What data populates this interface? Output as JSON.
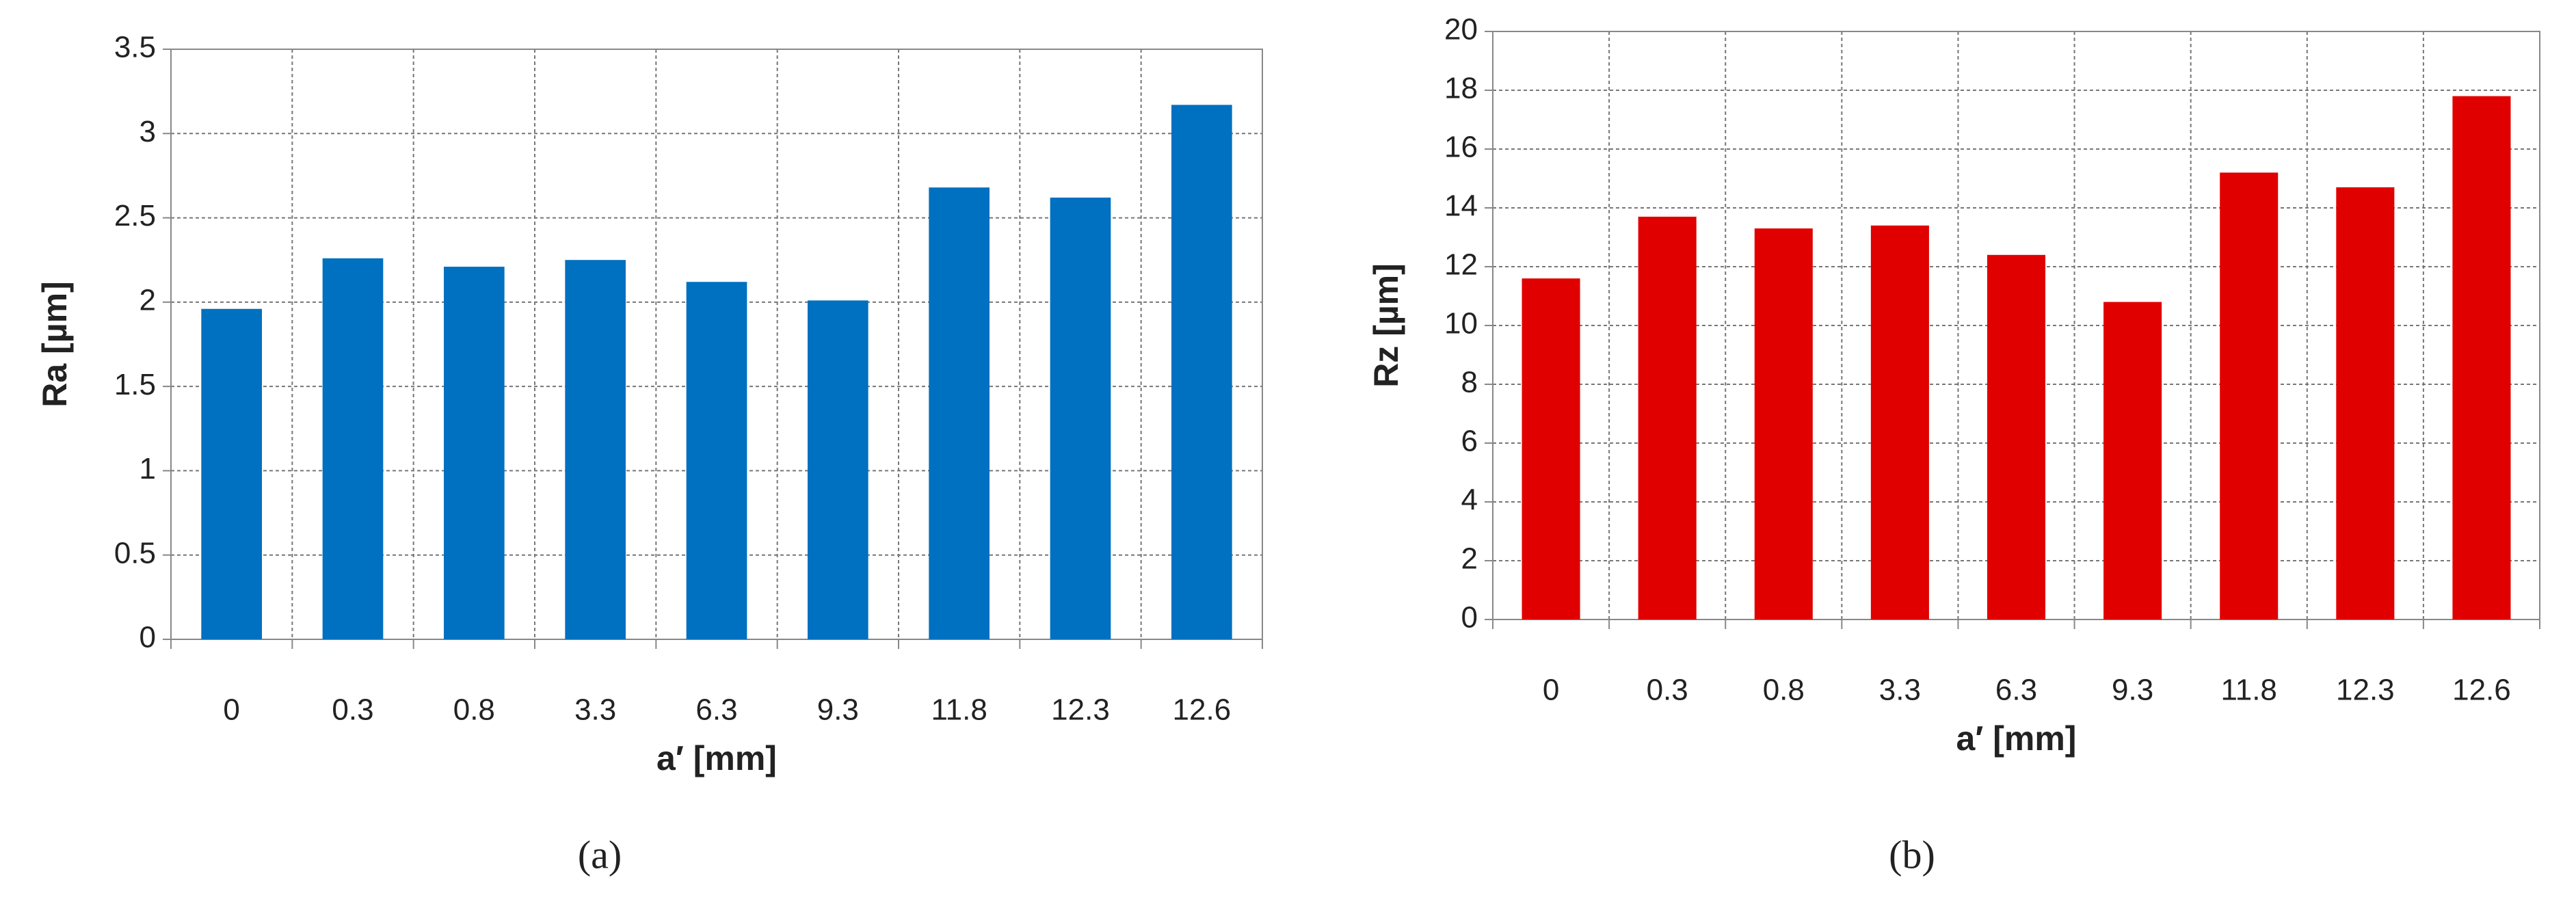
{
  "chart_data": [
    {
      "type": "bar",
      "caption": "(a)",
      "x_label": "a′ [mm]",
      "y_label": "Ra [µm]",
      "categories": [
        "0",
        "0.3",
        "0.8",
        "3.3",
        "6.3",
        "9.3",
        "11.8",
        "12.3",
        "12.6"
      ],
      "values": [
        1.96,
        2.26,
        2.21,
        2.25,
        2.12,
        2.01,
        2.68,
        2.62,
        3.17
      ],
      "color": "#0070c0",
      "ylim": [
        0,
        3.5
      ],
      "yticks": [
        0,
        0.5,
        1,
        1.5,
        2,
        2.5,
        3,
        3.5
      ],
      "grid": true
    },
    {
      "type": "bar",
      "caption": "(b)",
      "x_label": "a′ [mm]",
      "y_label": "Rz [µm]",
      "categories": [
        "0",
        "0.3",
        "0.8",
        "3.3",
        "6.3",
        "9.3",
        "11.8",
        "12.3",
        "12.6"
      ],
      "values": [
        11.6,
        13.7,
        13.3,
        13.4,
        12.4,
        10.8,
        15.2,
        14.7,
        17.8
      ],
      "color": "#e00000",
      "ylim": [
        0,
        20
      ],
      "yticks": [
        0,
        2,
        4,
        6,
        8,
        10,
        12,
        14,
        16,
        18,
        20
      ],
      "grid": true
    }
  ]
}
